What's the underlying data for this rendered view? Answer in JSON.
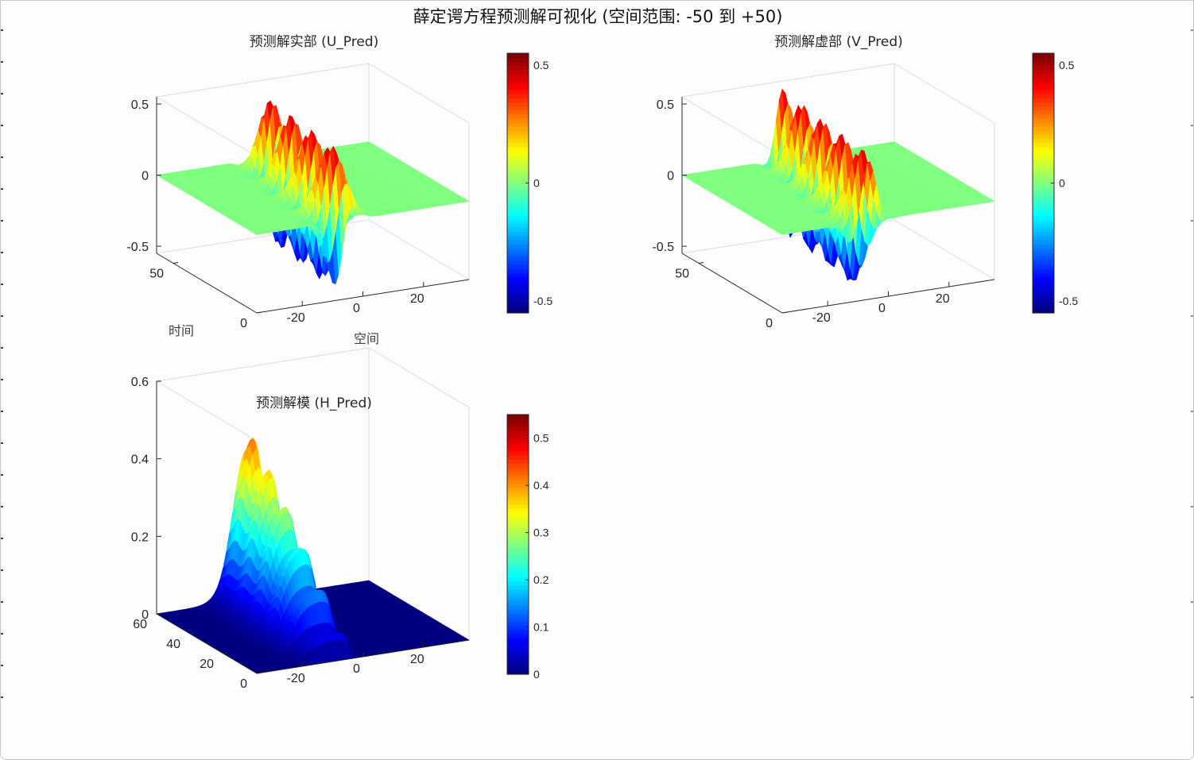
{
  "figure": {
    "title": "薛定谔方程预测解可视化 (空间范围: -50 到 +50)"
  },
  "colormap": "jet",
  "chart_data": [
    {
      "type": "surface",
      "title": "预测解实部 (U_Pred)",
      "xlabel": "空间",
      "ylabel": "时间",
      "zlabel": "",
      "xlim": [
        -35,
        35
      ],
      "ylim": [
        0,
        60
      ],
      "zlim": [
        -0.55,
        0.55
      ],
      "xticks": [
        "-20",
        "0",
        "20"
      ],
      "yticks": [
        "0",
        "50"
      ],
      "zticks": [
        "-0.5",
        "0",
        "0.5"
      ],
      "colorbar": {
        "range": [
          -0.55,
          0.55
        ],
        "ticks": [
          "-0.5",
          "0",
          "0.5"
        ]
      },
      "description_of_data": "oscillating wave packet, peaks ~0.5 and troughs ~-0.5 near x≈-10 to 0"
    },
    {
      "type": "surface",
      "title": "预测解虚部 (V_Pred)",
      "xlabel": "",
      "ylabel": "",
      "zlabel": "",
      "xlim": [
        -35,
        35
      ],
      "ylim": [
        0,
        60
      ],
      "zlim": [
        -0.55,
        0.55
      ],
      "xticks": [
        "-20",
        "0",
        "20"
      ],
      "yticks": [
        "0",
        "50"
      ],
      "zticks": [
        "-0.5",
        "0",
        "0.5"
      ],
      "colorbar": {
        "range": [
          -0.55,
          0.55
        ],
        "ticks": [
          "-0.5",
          "0",
          "0.5"
        ]
      }
    },
    {
      "type": "surface",
      "title": "预测解模 (H_Pred)",
      "xlabel": "",
      "ylabel": "",
      "zlabel": "",
      "xlim": [
        -35,
        35
      ],
      "ylim": [
        0,
        60
      ],
      "zlim": [
        0,
        0.6
      ],
      "xticks": [
        "-20",
        "0",
        "20"
      ],
      "yticks": [
        "0",
        "20",
        "40",
        "60"
      ],
      "zticks": [
        "0",
        "0.2",
        "0.4",
        "0.6"
      ],
      "colorbar": {
        "range": [
          0,
          0.55
        ],
        "ticks": [
          "0",
          "0.1",
          "0.2",
          "0.3",
          "0.4",
          "0.5"
        ]
      }
    }
  ]
}
